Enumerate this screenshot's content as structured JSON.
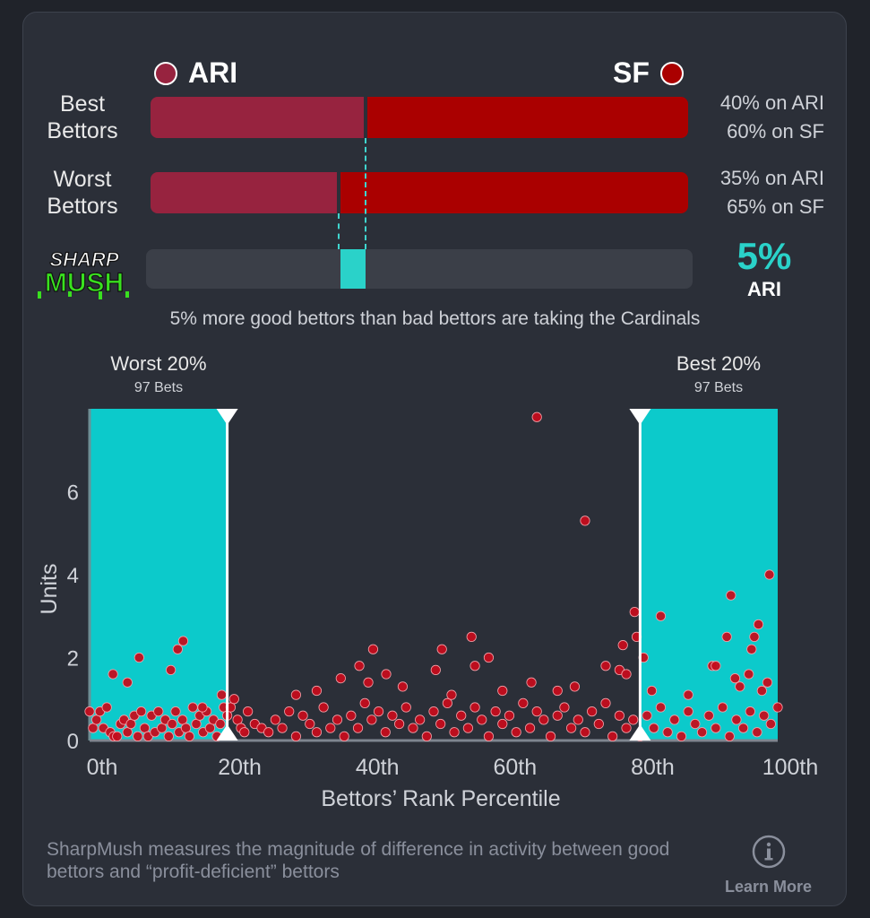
{
  "teams": {
    "away": {
      "abbr": "ARI",
      "color": "#97233f"
    },
    "home": {
      "abbr": "SF",
      "color": "#aa0000"
    }
  },
  "rows": [
    {
      "label_line1": "Best",
      "label_line2": "Bettors",
      "away_pct": 40,
      "home_pct": 60,
      "away_text": "40% on ARI",
      "home_text": "60% on SF"
    },
    {
      "label_line1": "Worst",
      "label_line2": "Bettors",
      "away_pct": 35,
      "home_pct": 65,
      "away_text": "35% on ARI",
      "home_text": "65% on SF"
    }
  ],
  "sharpmush": {
    "logo_line1": "SHARP",
    "logo_line2": "MUSH",
    "diff_value": "5%",
    "diff_team": "ARI",
    "diff_pct": 5,
    "accent": "#2ad2c9",
    "summary": "5% more good bettors than bad bettors are taking the Cardinals"
  },
  "buckets": {
    "worst": {
      "title": "Worst 20%",
      "sub": "97 Bets"
    },
    "best": {
      "title": "Best 20%",
      "sub": "97 Bets"
    }
  },
  "chart_data": {
    "type": "scatter",
    "xlabel": "Bettors’ Rank Percentile",
    "ylabel": "Units",
    "xlim": [
      0,
      100
    ],
    "ylim": [
      0,
      8
    ],
    "xticks": [
      "0th",
      "20th",
      "40th",
      "60th",
      "80th",
      "100th"
    ],
    "yticks": [
      "0",
      "2",
      "4",
      "6"
    ],
    "shaded_ranges": [
      [
        0,
        20
      ],
      [
        80,
        100
      ]
    ],
    "points": [
      [
        0,
        0.7
      ],
      [
        0.5,
        0.3
      ],
      [
        1,
        0.5
      ],
      [
        1.5,
        0.7
      ],
      [
        2,
        0.3
      ],
      [
        2.5,
        0.8
      ],
      [
        3,
        0.2
      ],
      [
        3.5,
        0.1
      ],
      [
        4,
        0.1
      ],
      [
        4.5,
        0.4
      ],
      [
        5,
        0.5
      ],
      [
        5.5,
        0.2
      ],
      [
        6,
        0.4
      ],
      [
        6.5,
        0.6
      ],
      [
        7,
        0.1
      ],
      [
        7.5,
        0.7
      ],
      [
        8,
        0.3
      ],
      [
        8.5,
        0.1
      ],
      [
        9,
        0.6
      ],
      [
        9.5,
        0.2
      ],
      [
        10,
        0.7
      ],
      [
        10.5,
        0.3
      ],
      [
        11,
        0.5
      ],
      [
        11.5,
        0.1
      ],
      [
        12,
        0.4
      ],
      [
        12.5,
        0.7
      ],
      [
        13,
        0.2
      ],
      [
        13.5,
        0.5
      ],
      [
        14,
        0.3
      ],
      [
        14.5,
        0.1
      ],
      [
        15,
        0.8
      ],
      [
        15.5,
        0.4
      ],
      [
        16,
        0.6
      ],
      [
        16.5,
        0.2
      ],
      [
        17,
        0.7
      ],
      [
        17.5,
        0.3
      ],
      [
        18,
        0.5
      ],
      [
        18.5,
        0.1
      ],
      [
        19,
        0.4
      ],
      [
        19.5,
        0.8
      ],
      [
        3.4,
        1.6
      ],
      [
        5.5,
        1.4
      ],
      [
        7.2,
        2.0
      ],
      [
        11.8,
        1.7
      ],
      [
        12.8,
        2.2
      ],
      [
        13.6,
        2.4
      ],
      [
        16.4,
        0.8
      ],
      [
        19.2,
        1.1
      ],
      [
        20,
        0.6
      ],
      [
        20.5,
        0.8
      ],
      [
        21,
        1.0
      ],
      [
        21.5,
        0.5
      ],
      [
        22,
        0.3
      ],
      [
        22.5,
        0.2
      ],
      [
        23,
        0.7
      ],
      [
        24,
        0.4
      ],
      [
        25,
        0.3
      ],
      [
        26,
        0.2
      ],
      [
        27,
        0.5
      ],
      [
        28,
        0.3
      ],
      [
        29,
        0.7
      ],
      [
        30,
        0.1
      ],
      [
        31,
        0.6
      ],
      [
        32,
        0.4
      ],
      [
        33,
        0.2
      ],
      [
        34,
        0.8
      ],
      [
        35,
        0.3
      ],
      [
        36,
        0.5
      ],
      [
        37,
        0.1
      ],
      [
        38,
        0.6
      ],
      [
        39,
        0.3
      ],
      [
        40,
        0.9
      ],
      [
        41,
        0.5
      ],
      [
        42,
        0.7
      ],
      [
        43,
        0.2
      ],
      [
        44,
        0.6
      ],
      [
        45,
        0.4
      ],
      [
        46,
        0.8
      ],
      [
        47,
        0.3
      ],
      [
        48,
        0.5
      ],
      [
        49,
        0.1
      ],
      [
        50,
        0.7
      ],
      [
        51,
        0.4
      ],
      [
        52,
        0.9
      ],
      [
        53,
        0.2
      ],
      [
        54,
        0.6
      ],
      [
        55,
        0.3
      ],
      [
        56,
        0.8
      ],
      [
        57,
        0.5
      ],
      [
        58,
        0.1
      ],
      [
        59,
        0.7
      ],
      [
        60,
        0.4
      ],
      [
        61,
        0.6
      ],
      [
        62,
        0.2
      ],
      [
        63,
        0.9
      ],
      [
        64,
        0.3
      ],
      [
        65,
        0.7
      ],
      [
        66,
        0.5
      ],
      [
        67,
        0.1
      ],
      [
        68,
        0.6
      ],
      [
        69,
        0.8
      ],
      [
        70,
        0.3
      ],
      [
        71,
        0.5
      ],
      [
        72,
        0.2
      ],
      [
        73,
        0.7
      ],
      [
        74,
        0.4
      ],
      [
        75,
        0.9
      ],
      [
        76,
        0.1
      ],
      [
        77,
        0.6
      ],
      [
        78,
        0.3
      ],
      [
        79,
        0.5
      ],
      [
        30,
        1.1
      ],
      [
        33,
        1.2
      ],
      [
        36.5,
        1.5
      ],
      [
        39.2,
        1.8
      ],
      [
        40.5,
        1.4
      ],
      [
        41.2,
        2.2
      ],
      [
        43.1,
        1.6
      ],
      [
        45.5,
        1.3
      ],
      [
        50.3,
        1.7
      ],
      [
        51.2,
        2.2
      ],
      [
        52.6,
        1.1
      ],
      [
        55.5,
        2.5
      ],
      [
        56,
        1.8
      ],
      [
        58,
        2.0
      ],
      [
        60,
        1.2
      ],
      [
        64.2,
        1.4
      ],
      [
        65,
        7.8
      ],
      [
        68,
        1.2
      ],
      [
        70.5,
        1.3
      ],
      [
        72,
        5.3
      ],
      [
        75,
        1.8
      ],
      [
        77,
        1.7
      ],
      [
        77.5,
        2.3
      ],
      [
        78,
        1.6
      ],
      [
        79.2,
        3.1
      ],
      [
        79.5,
        2.5
      ],
      [
        80,
        0.1
      ],
      [
        81,
        0.6
      ],
      [
        82,
        0.3
      ],
      [
        83,
        0.8
      ],
      [
        84,
        0.2
      ],
      [
        85,
        0.5
      ],
      [
        86,
        0.1
      ],
      [
        87,
        0.7
      ],
      [
        88,
        0.4
      ],
      [
        89,
        0.2
      ],
      [
        90,
        0.6
      ],
      [
        91,
        0.3
      ],
      [
        92,
        0.8
      ],
      [
        93,
        0.1
      ],
      [
        94,
        0.5
      ],
      [
        95,
        0.3
      ],
      [
        96,
        0.7
      ],
      [
        97,
        0.2
      ],
      [
        98,
        0.6
      ],
      [
        99,
        0.4
      ],
      [
        100,
        0.8
      ],
      [
        80.5,
        2.0
      ],
      [
        81.7,
        1.2
      ],
      [
        83,
        3.0
      ],
      [
        87,
        1.1
      ],
      [
        90.5,
        1.8
      ],
      [
        91,
        1.8
      ],
      [
        92.6,
        2.5
      ],
      [
        93.2,
        3.5
      ],
      [
        93.8,
        1.5
      ],
      [
        94.5,
        1.3
      ],
      [
        95.8,
        1.6
      ],
      [
        96.2,
        2.2
      ],
      [
        96.6,
        2.5
      ],
      [
        97.2,
        2.8
      ],
      [
        97.7,
        1.2
      ],
      [
        98.5,
        1.4
      ],
      [
        98.8,
        4.0
      ]
    ]
  },
  "footer": {
    "text": "SharpMush measures the magnitude of difference in activity between good bettors and “profit-deficient” bettors",
    "learn_more": "Learn More"
  }
}
